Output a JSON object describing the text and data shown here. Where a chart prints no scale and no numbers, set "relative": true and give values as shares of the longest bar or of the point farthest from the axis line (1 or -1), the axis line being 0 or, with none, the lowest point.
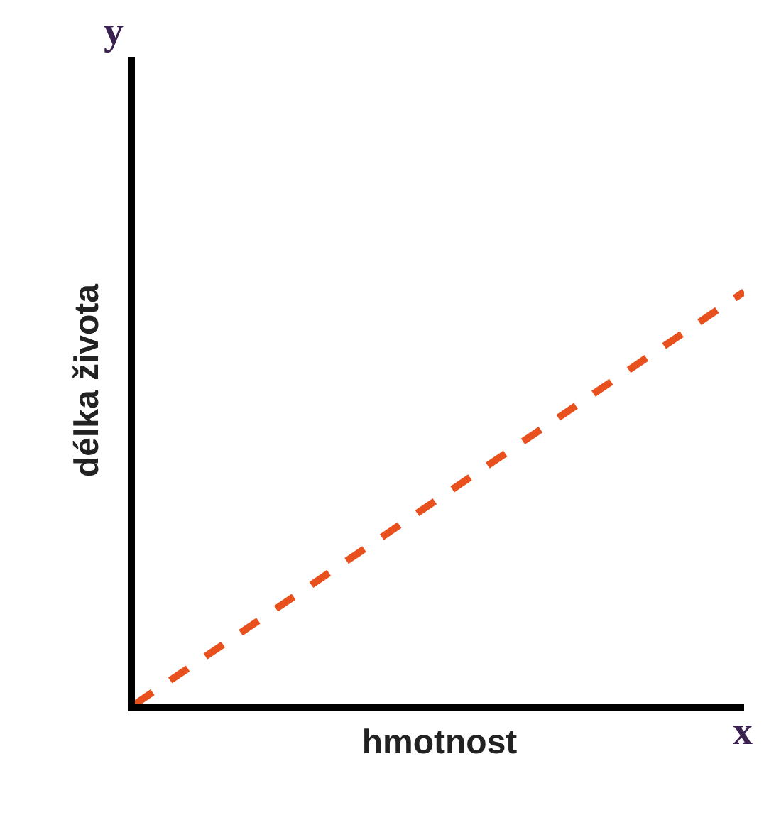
{
  "chart_data": {
    "type": "line",
    "relative": true,
    "categories": [
      null,
      null
    ],
    "series": [
      {
        "color": "#e8501e",
        "values": [
          0,
          1
        ]
      }
    ],
    "xlabel": "hmotnost",
    "ylabel": "délka života",
    "annotations": [
      "y",
      "x"
    ],
    "line_style": "dashed",
    "marker": "none",
    "legend": false,
    "tick_labels": false
  }
}
